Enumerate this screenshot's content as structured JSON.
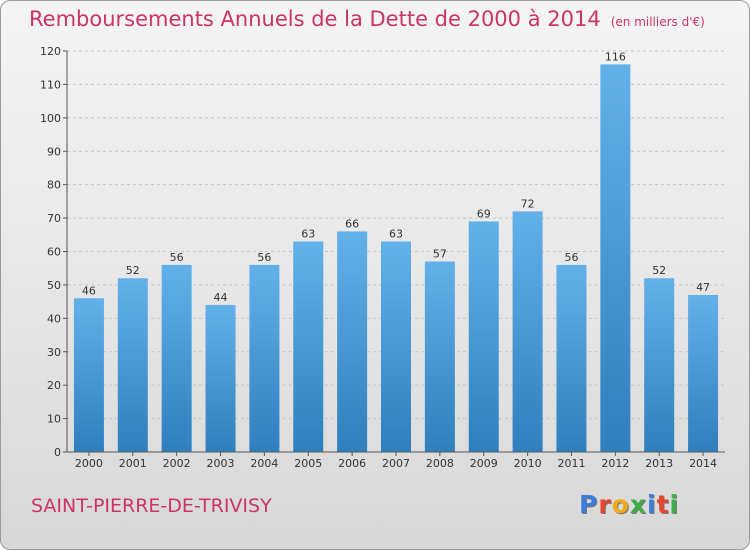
{
  "title": "Remboursements Annuels de la Dette de 2000 à 2014",
  "unit": "(en milliers d'€)",
  "city": "SAINT-PIERRE-DE-TRIVISY",
  "logo": {
    "letters": [
      "P",
      "r",
      "o",
      "x",
      "i",
      "t",
      "i"
    ],
    "colors": [
      "#3a7fd5",
      "#e8442e",
      "#f2a81d",
      "#3fae49",
      "#3a7fd5",
      "#e8442e",
      "#3fae49"
    ]
  },
  "colors": {
    "bar_top": "#62b1ea",
    "bar_bottom": "#2f7fbe",
    "title": "#cc3366"
  },
  "chart_data": {
    "type": "bar",
    "categories": [
      "2000",
      "2001",
      "2002",
      "2003",
      "2004",
      "2005",
      "2006",
      "2007",
      "2008",
      "2009",
      "2010",
      "2011",
      "2012",
      "2013",
      "2014"
    ],
    "values": [
      46,
      52,
      56,
      44,
      56,
      63,
      66,
      63,
      57,
      69,
      72,
      56,
      116,
      52,
      47
    ],
    "title": "Remboursements Annuels de la Dette de 2000 à 2014",
    "ylim": [
      0,
      120
    ],
    "yticks": [
      0,
      10,
      20,
      30,
      40,
      50,
      60,
      70,
      80,
      90,
      100,
      110,
      120
    ],
    "grid": true
  }
}
